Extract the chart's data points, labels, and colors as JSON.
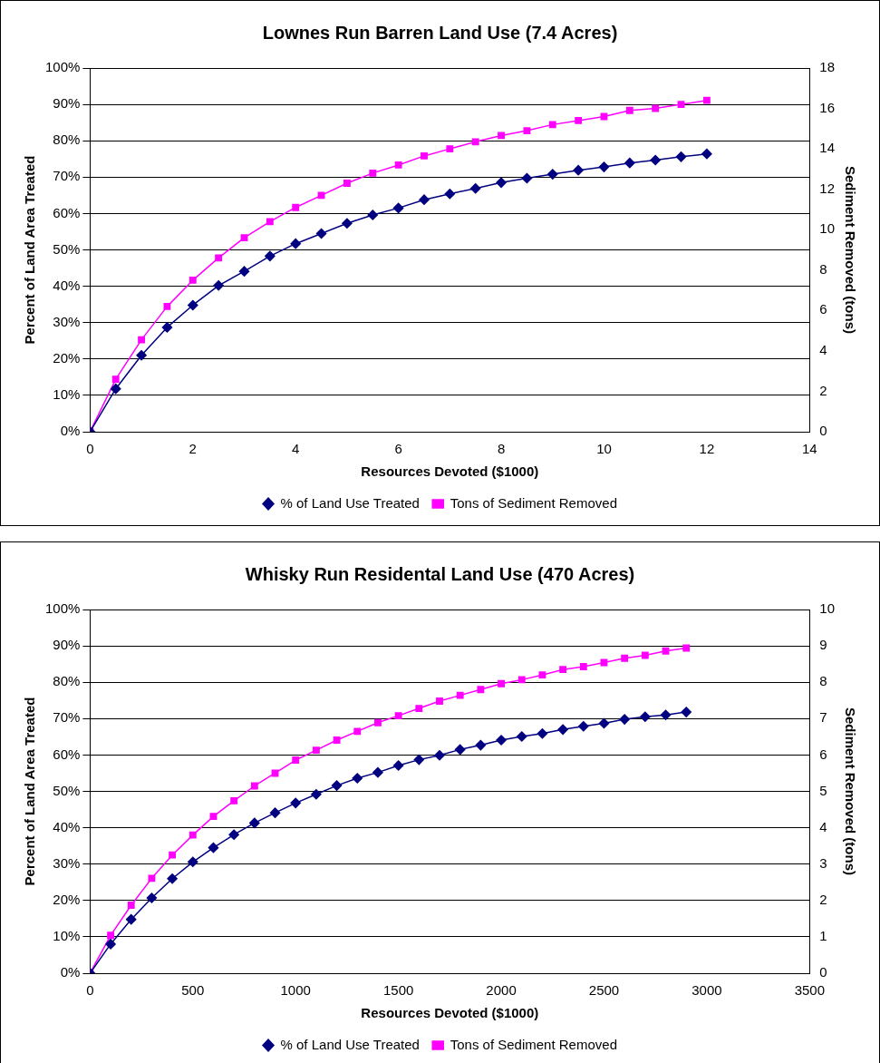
{
  "chart_data": [
    {
      "type": "line",
      "title": "Lownes Run Barren Land Use (7.4 Acres)",
      "xlabel": "Resources Devoted ($1000)",
      "ylabel": "Percent of Land Area Treated",
      "y2label": "Sediment Removed (tons)",
      "x": [
        0,
        0.5,
        1,
        1.5,
        2,
        2.5,
        3,
        3.5,
        4,
        4.5,
        5,
        5.5,
        6,
        6.5,
        7,
        7.5,
        8,
        8.5,
        9,
        9.5,
        10,
        10.5,
        11,
        11.5,
        12
      ],
      "xlim": [
        0,
        14
      ],
      "xticks": [
        0,
        2,
        4,
        6,
        8,
        10,
        12,
        14
      ],
      "ylim": [
        0,
        100
      ],
      "yticks": [
        {
          "value": 0,
          "label": "0%"
        },
        {
          "value": 10,
          "label": "10%"
        },
        {
          "value": 20,
          "label": "20%"
        },
        {
          "value": 30,
          "label": "30%"
        },
        {
          "value": 40,
          "label": "40%"
        },
        {
          "value": 50,
          "label": "50%"
        },
        {
          "value": 60,
          "label": "60%"
        },
        {
          "value": 70,
          "label": "70%"
        },
        {
          "value": 80,
          "label": "80%"
        },
        {
          "value": 90,
          "label": "90%"
        },
        {
          "value": 100,
          "label": "100%"
        }
      ],
      "y2lim": [
        0,
        18
      ],
      "y2ticks": [
        0,
        2,
        4,
        6,
        8,
        10,
        12,
        14,
        16,
        18
      ],
      "grid": "y",
      "legend": "bottom",
      "series": [
        {
          "name": "% of Land Use Treated",
          "color": "#000080",
          "marker": "diamond",
          "values": [
            0,
            11.8,
            21,
            28.7,
            34.8,
            40.2,
            44.1,
            48.3,
            51.7,
            54.5,
            57.3,
            59.6,
            61.5,
            63.8,
            65.4,
            66.9,
            68.5,
            69.7,
            70.8,
            71.9,
            72.8,
            73.9,
            74.7,
            75.6,
            76.4
          ]
        },
        {
          "name": "Tons of Sediment Removed",
          "color": "#ff00ff",
          "marker": "square",
          "axis": "y2",
          "values": [
            0,
            2.6,
            4.55,
            6.2,
            7.5,
            8.6,
            9.6,
            10.4,
            11.1,
            11.7,
            12.3,
            12.8,
            13.2,
            13.65,
            14,
            14.35,
            14.66,
            14.9,
            15.2,
            15.4,
            15.6,
            15.9,
            16,
            16.2,
            16.4
          ]
        }
      ]
    },
    {
      "type": "line",
      "title": "Whisky Run Residental Land Use (470 Acres)",
      "xlabel": "Resources Devoted ($1000)",
      "ylabel": "Percent of Land Area Treated",
      "y2label": "Sediment Removed (tons)",
      "x": [
        0,
        100,
        200,
        300,
        400,
        500,
        600,
        700,
        800,
        900,
        1000,
        1100,
        1200,
        1300,
        1400,
        1500,
        1600,
        1700,
        1800,
        1900,
        2000,
        2100,
        2200,
        2300,
        2400,
        2500,
        2600,
        2700,
        2800,
        2900
      ],
      "xlim": [
        0,
        3500
      ],
      "xticks": [
        0,
        500,
        1000,
        1500,
        2000,
        2500,
        3000,
        3500
      ],
      "ylim": [
        0,
        100
      ],
      "yticks": [
        {
          "value": 0,
          "label": "0%"
        },
        {
          "value": 10,
          "label": "10%"
        },
        {
          "value": 20,
          "label": "20%"
        },
        {
          "value": 30,
          "label": "30%"
        },
        {
          "value": 40,
          "label": "40%"
        },
        {
          "value": 50,
          "label": "50%"
        },
        {
          "value": 60,
          "label": "60%"
        },
        {
          "value": 70,
          "label": "70%"
        },
        {
          "value": 80,
          "label": "80%"
        },
        {
          "value": 90,
          "label": "90%"
        },
        {
          "value": 100,
          "label": "100%"
        }
      ],
      "y2lim": [
        0,
        10
      ],
      "y2ticks": [
        0,
        1,
        2,
        3,
        4,
        5,
        6,
        7,
        8,
        9,
        10
      ],
      "grid": "y",
      "legend": "bottom",
      "series": [
        {
          "name": "% of Land Use Treated",
          "color": "#000080",
          "marker": "diamond",
          "values": [
            0,
            8,
            14.8,
            20.7,
            26,
            30.6,
            34.5,
            38.1,
            41.3,
            44.1,
            46.8,
            49.2,
            51.6,
            53.6,
            55.2,
            57.1,
            58.7,
            59.9,
            61.5,
            62.7,
            64.1,
            65.1,
            65.9,
            67,
            67.9,
            68.7,
            69.8,
            70.5,
            71,
            71.8
          ]
        },
        {
          "name": "Tons of Sediment Removed",
          "color": "#ff00ff",
          "marker": "square",
          "axis": "y2",
          "values": [
            0,
            1.04,
            1.87,
            2.61,
            3.25,
            3.8,
            4.31,
            4.74,
            5.15,
            5.5,
            5.86,
            6.13,
            6.41,
            6.65,
            6.89,
            7.08,
            7.28,
            7.48,
            7.64,
            7.8,
            7.96,
            8.07,
            8.2,
            8.35,
            8.43,
            8.54,
            8.66,
            8.74,
            8.86,
            8.94
          ]
        }
      ]
    }
  ]
}
